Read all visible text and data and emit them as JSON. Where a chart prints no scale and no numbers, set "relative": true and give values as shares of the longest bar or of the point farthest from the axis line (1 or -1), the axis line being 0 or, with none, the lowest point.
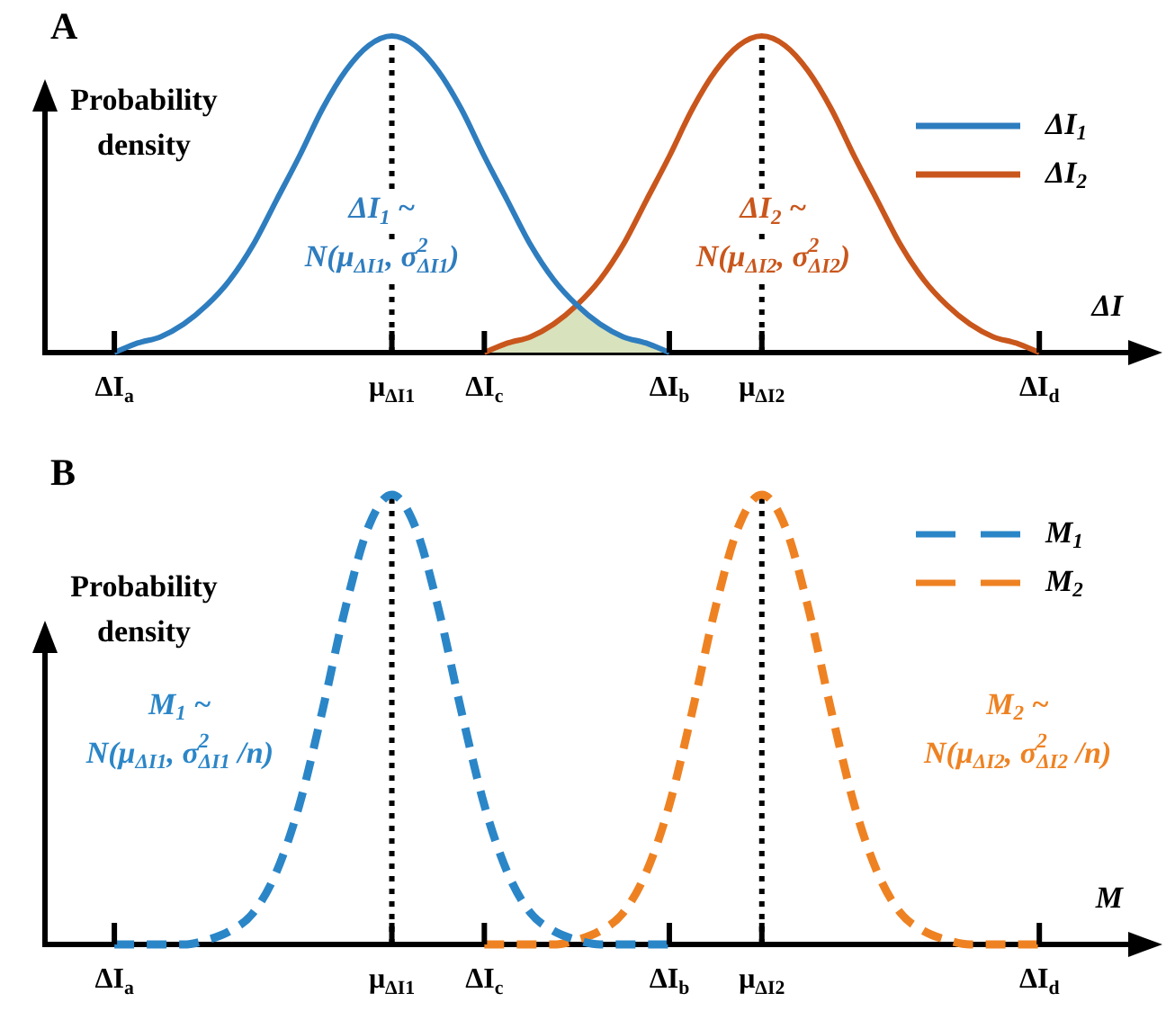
{
  "chart_data": [
    {
      "type": "line",
      "title": "A",
      "ylabel": "Probability\ndensity",
      "xlabel": "ΔI",
      "relative": true,
      "legend": "top right",
      "marker": "none",
      "line_style": "solid",
      "categories": [
        null,
        null,
        null,
        "ΔI$_{a}$",
        null,
        null,
        null,
        null,
        null,
        null,
        null,
        null,
        null,
        null,
        null,
        "μ$_{ΔI1}$",
        null,
        null,
        null,
        "ΔI$_{c}$",
        null,
        null,
        null,
        null,
        null,
        null,
        null,
        "ΔI$_{b}$",
        null,
        null,
        null,
        "μ$_{ΔI2}$",
        null,
        null,
        null,
        null,
        null,
        null,
        null,
        null,
        null,
        null,
        null,
        "ΔI$_{d}$",
        null,
        null,
        null,
        null
      ],
      "series": [
        {
          "name": "ΔI$_{1}$",
          "color": "#2e7dbf",
          "values": [
            null,
            null,
            null,
            0,
            0.03,
            0.05,
            0.09,
            0.15,
            0.23,
            0.34,
            0.48,
            0.62,
            0.77,
            0.89,
            0.97,
            1,
            0.97,
            0.89,
            0.77,
            0.62,
            0.48,
            0.34,
            0.23,
            0.15,
            0.09,
            0.05,
            0.03,
            0,
            null,
            null,
            null,
            null,
            null,
            null,
            null,
            null,
            null,
            null,
            null,
            null,
            null,
            null,
            null,
            null,
            null,
            null,
            null,
            null
          ]
        },
        {
          "name": "ΔI$_{2}$",
          "color": "#c9561c",
          "values": [
            null,
            null,
            null,
            null,
            null,
            null,
            null,
            null,
            null,
            null,
            null,
            null,
            null,
            null,
            null,
            null,
            null,
            null,
            null,
            0,
            0.03,
            0.05,
            0.09,
            0.15,
            0.23,
            0.34,
            0.48,
            0.62,
            0.77,
            0.89,
            0.97,
            1,
            0.97,
            0.89,
            0.77,
            0.62,
            0.48,
            0.34,
            0.23,
            0.15,
            0.09,
            0.05,
            0.03,
            0,
            null,
            null,
            null,
            null
          ]
        },
        {
          "type": "area",
          "color": "#d8e2bc",
          "values": [
            null,
            null,
            null,
            null,
            null,
            null,
            null,
            null,
            null,
            null,
            null,
            null,
            null,
            null,
            null,
            null,
            null,
            null,
            null,
            0,
            0.03,
            0.05,
            0.09,
            0.15,
            0.09,
            0.05,
            0.03,
            0,
            null,
            null,
            null,
            null,
            null,
            null,
            null,
            null,
            null,
            null,
            null,
            null,
            null,
            null,
            null,
            null,
            null,
            null,
            null,
            null
          ]
        }
      ],
      "ref_lines": [
        {
          "axis": "x",
          "value": "μ$_{ΔI1}$",
          "line_style": "dotted",
          "color": "#000000"
        },
        {
          "axis": "x",
          "value": "μ$_{ΔI2}$",
          "line_style": "dotted",
          "color": "#000000"
        }
      ],
      "annotations": [
        "ΔI$_{1}$ ~\nN(μ$_{ΔI1}$, σ$^{2}$$_{ΔI1}$)",
        "ΔI$_{2}$ ~\nN(μ$_{ΔI2}$, σ$^{2}$$_{ΔI2}$)"
      ]
    },
    {
      "type": "line",
      "title": "B",
      "ylabel": "Probability\ndensity",
      "xlabel": "M",
      "relative": true,
      "legend": "top right",
      "marker": "none",
      "line_style": "dashed",
      "categories": [
        null,
        null,
        null,
        "ΔI$_{a}$",
        null,
        null,
        null,
        null,
        null,
        null,
        null,
        null,
        null,
        null,
        null,
        "μ$_{ΔI1}$",
        null,
        null,
        null,
        "ΔI$_{c}$",
        null,
        null,
        null,
        null,
        null,
        null,
        null,
        "ΔI$_{b}$",
        null,
        null,
        null,
        "μ$_{ΔI2}$",
        null,
        null,
        null,
        null,
        null,
        null,
        null,
        null,
        null,
        null,
        null,
        "ΔI$_{d}$",
        null,
        null,
        null,
        null
      ],
      "series": [
        {
          "name": "M$_{1}$",
          "color": "#2b86c8",
          "values": [
            null,
            null,
            null,
            0,
            0,
            0,
            0,
            0.01,
            0.03,
            0.07,
            0.16,
            0.31,
            0.52,
            0.75,
            0.93,
            1,
            0.93,
            0.75,
            0.52,
            0.31,
            0.16,
            0.07,
            0.03,
            0.01,
            0,
            0,
            0,
            0,
            null,
            null,
            null,
            null,
            null,
            null,
            null,
            null,
            null,
            null,
            null,
            null,
            null,
            null,
            null,
            null,
            null,
            null,
            null,
            null
          ]
        },
        {
          "name": "M$_{2}$",
          "color": "#ee8222",
          "values": [
            null,
            null,
            null,
            null,
            null,
            null,
            null,
            null,
            null,
            null,
            null,
            null,
            null,
            null,
            null,
            null,
            null,
            null,
            null,
            0,
            0,
            0,
            0,
            0.01,
            0.03,
            0.07,
            0.16,
            0.31,
            0.52,
            0.75,
            0.93,
            1,
            0.93,
            0.75,
            0.52,
            0.31,
            0.16,
            0.07,
            0.03,
            0.01,
            0,
            0,
            0,
            0,
            null,
            null,
            null,
            null
          ]
        }
      ],
      "ref_lines": [
        {
          "axis": "x",
          "value": "μ$_{ΔI1}$",
          "line_style": "dotted",
          "color": "#000000"
        },
        {
          "axis": "x",
          "value": "μ$_{ΔI2}$",
          "line_style": "dotted",
          "color": "#000000"
        }
      ],
      "annotations": [
        "M$_{1}$ ~\nN(μ$_{ΔI1}$, σ$^{2}$$_{ΔI1}$ /n)",
        "M$_{2}$ ~\nN(μ$_{ΔI2}$, σ$^{2}$$_{ΔI2}$ /n)"
      ]
    }
  ]
}
